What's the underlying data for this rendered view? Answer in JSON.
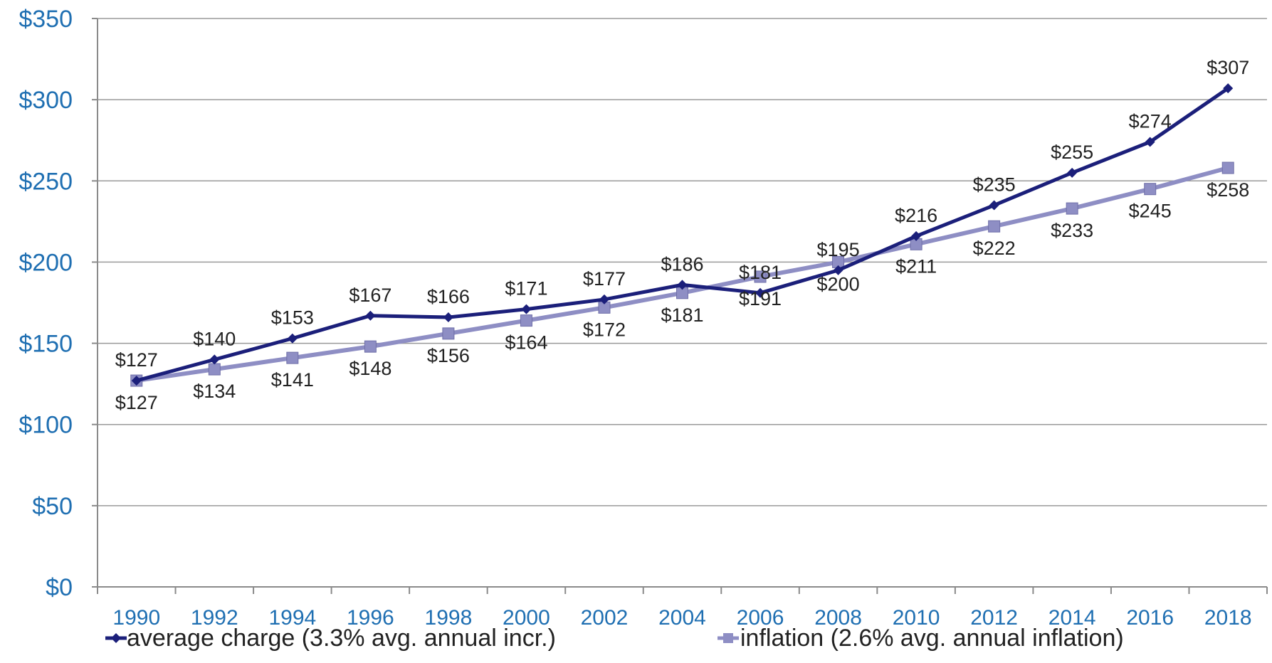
{
  "chart_data": {
    "type": "line",
    "categories": [
      "1990",
      "1992",
      "1994",
      "1996",
      "1998",
      "2000",
      "2002",
      "2004",
      "2006",
      "2008",
      "2010",
      "2012",
      "2014",
      "2016",
      "2018"
    ],
    "y_ticks": [
      "$0",
      "$50",
      "$100",
      "$150",
      "$200",
      "$250",
      "$300",
      "$350"
    ],
    "ylim": [
      0,
      350
    ],
    "grid": true,
    "legend_position": "bottom",
    "series": [
      {
        "name": "average charge (3.3% avg. annual incr.)",
        "values": [
          127,
          140,
          153,
          167,
          166,
          171,
          177,
          186,
          181,
          195,
          216,
          235,
          255,
          274,
          307
        ],
        "labels": [
          "$127",
          "$140",
          "$153",
          "$167",
          "$166",
          "$171",
          "$177",
          "$186",
          "$181",
          "$195",
          "$216",
          "$235",
          "$255",
          "$274",
          "$307"
        ],
        "color": "#1b1f7a",
        "marker": "diamond"
      },
      {
        "name": "inflation (2.6% avg. annual inflation)",
        "values": [
          127,
          134,
          141,
          148,
          156,
          164,
          172,
          181,
          191,
          200,
          211,
          222,
          233,
          245,
          258
        ],
        "labels": [
          "$127",
          "$134",
          "$141",
          "$148",
          "$156",
          "$164",
          "$172",
          "$181",
          "$191",
          "$200",
          "$211",
          "$222",
          "$233",
          "$245",
          "$258"
        ],
        "color": "#8e8ec4",
        "marker": "square"
      }
    ]
  }
}
